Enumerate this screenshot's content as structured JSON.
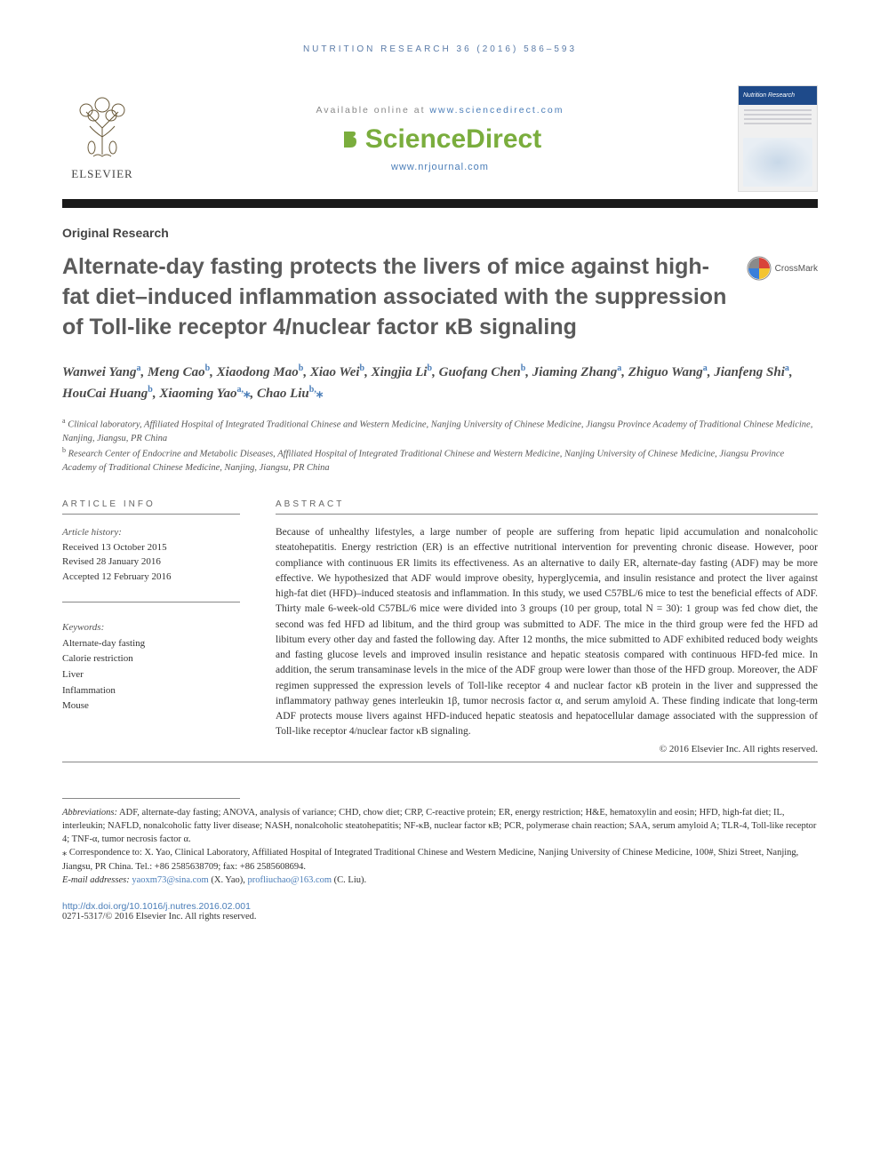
{
  "masthead": {
    "running_header": "NUTRITION RESEARCH 36 (2016) 586–593",
    "available_prefix": "Available online at ",
    "available_link": "www.sciencedirect.com",
    "sciencedirect_brand": "ScienceDirect",
    "journal_link": "www.nrjournal.com",
    "elsevier_label": "ELSEVIER",
    "crossmark_label": "CrossMark"
  },
  "colors": {
    "link_blue": "#4a7db8",
    "brand_green": "#7aad3d",
    "rule_dark": "#1a1a1a",
    "cover_blue": "#1e4a8a",
    "text_gray": "#5a5a5a"
  },
  "article": {
    "type": "Original Research",
    "title": "Alternate-day fasting protects the livers of mice against high-fat diet–induced inflammation associated with the suppression of Toll-like receptor 4/nuclear factor κB signaling",
    "authors_html": "Wanwei Yang<sup>a</sup>, Meng Cao<sup>b</sup>, Xiaodong Mao<sup>b</sup>, Xiao Wei<sup>b</sup>, Xingjia Li<sup>b</sup>, Guofang Chen<sup>b</sup>, Jiaming Zhang<sup>a</sup>, Zhiguo Wang<sup>a</sup>, Jianfeng Shi<sup>a</sup>, HouCai Huang<sup>b</sup>, Xiaoming Yao<sup>a,</sup><span class=\"star\">⁎</span>, Chao Liu<sup>b,</sup><span class=\"star\">⁎</span>",
    "affiliations": [
      {
        "sup": "a",
        "text": "Clinical laboratory, Affiliated Hospital of Integrated Traditional Chinese and Western Medicine, Nanjing University of Chinese Medicine, Jiangsu Province Academy of Traditional Chinese Medicine, Nanjing, Jiangsu, PR China"
      },
      {
        "sup": "b",
        "text": "Research Center of Endocrine and Metabolic Diseases, Affiliated Hospital of Integrated Traditional Chinese and Western Medicine, Nanjing University of Chinese Medicine, Jiangsu Province Academy of Traditional Chinese Medicine, Nanjing, Jiangsu, PR China"
      }
    ]
  },
  "info": {
    "section_label": "ARTICLE INFO",
    "history_label": "Article history:",
    "history": [
      "Received 13 October 2015",
      "Revised 28 January 2016",
      "Accepted 12 February 2016"
    ],
    "keywords_label": "Keywords:",
    "keywords": [
      "Alternate-day fasting",
      "Calorie restriction",
      "Liver",
      "Inflammation",
      "Mouse"
    ]
  },
  "abstract": {
    "section_label": "ABSTRACT",
    "text": "Because of unhealthy lifestyles, a large number of people are suffering from hepatic lipid accumulation and nonalcoholic steatohepatitis. Energy restriction (ER) is an effective nutritional intervention for preventing chronic disease. However, poor compliance with continuous ER limits its effectiveness. As an alternative to daily ER, alternate-day fasting (ADF) may be more effective. We hypothesized that ADF would improve obesity, hyperglycemia, and insulin resistance and protect the liver against high-fat diet (HFD)–induced steatosis and inflammation. In this study, we used C57BL/6 mice to test the beneficial effects of ADF. Thirty male 6-week-old C57BL/6 mice were divided into 3 groups (10 per group, total N = 30): 1 group was fed chow diet, the second was fed HFD ad libitum, and the third group was submitted to ADF. The mice in the third group were fed the HFD ad libitum every other day and fasted the following day. After 12 months, the mice submitted to ADF exhibited reduced body weights and fasting glucose levels and improved insulin resistance and hepatic steatosis compared with continuous HFD-fed mice. In addition, the serum transaminase levels in the mice of the ADF group were lower than those of the HFD group. Moreover, the ADF regimen suppressed the expression levels of Toll-like receptor 4 and nuclear factor κB protein in the liver and suppressed the inflammatory pathway genes interleukin 1β, tumor necrosis factor α, and serum amyloid A. These finding indicate that long-term ADF protects mouse livers against HFD-induced hepatic steatosis and hepatocellular damage associated with the suppression of Toll-like receptor 4/nuclear factor κB signaling.",
    "copyright": "© 2016 Elsevier Inc. All rights reserved."
  },
  "footnotes": {
    "abbrev_label": "Abbreviations:",
    "abbrev": " ADF, alternate-day fasting; ANOVA, analysis of variance; CHD, chow diet; CRP, C-reactive protein; ER, energy restriction; H&E, hematoxylin and eosin; HFD, high-fat diet; IL, interleukin; NAFLD, nonalcoholic fatty liver disease; NASH, nonalcoholic steatohepatitis; NF-κB, nuclear factor κB; PCR, polymerase chain reaction; SAA, serum amyloid A; TLR-4, Toll-like receptor 4; TNF-α, tumor necrosis factor α.",
    "correspondence_label": "⁎ Correspondence to:",
    "correspondence": " X. Yao, Clinical Laboratory, Affiliated Hospital of Integrated Traditional Chinese and Western Medicine, Nanjing University of Chinese Medicine, 100#, Shizi Street, Nanjing, Jiangsu, PR China. Tel.: +86 2585638709; fax: +86 2585608694.",
    "email_label": "E-mail addresses: ",
    "email1": "yaoxm73@sina.com",
    "email1_attr": " (X. Yao), ",
    "email2": "profliuchao@163.com",
    "email2_attr": " (C. Liu).",
    "doi": "http://dx.doi.org/10.1016/j.nutres.2016.02.001",
    "issn_line": "0271-5317/© 2016 Elsevier Inc. All rights reserved."
  }
}
